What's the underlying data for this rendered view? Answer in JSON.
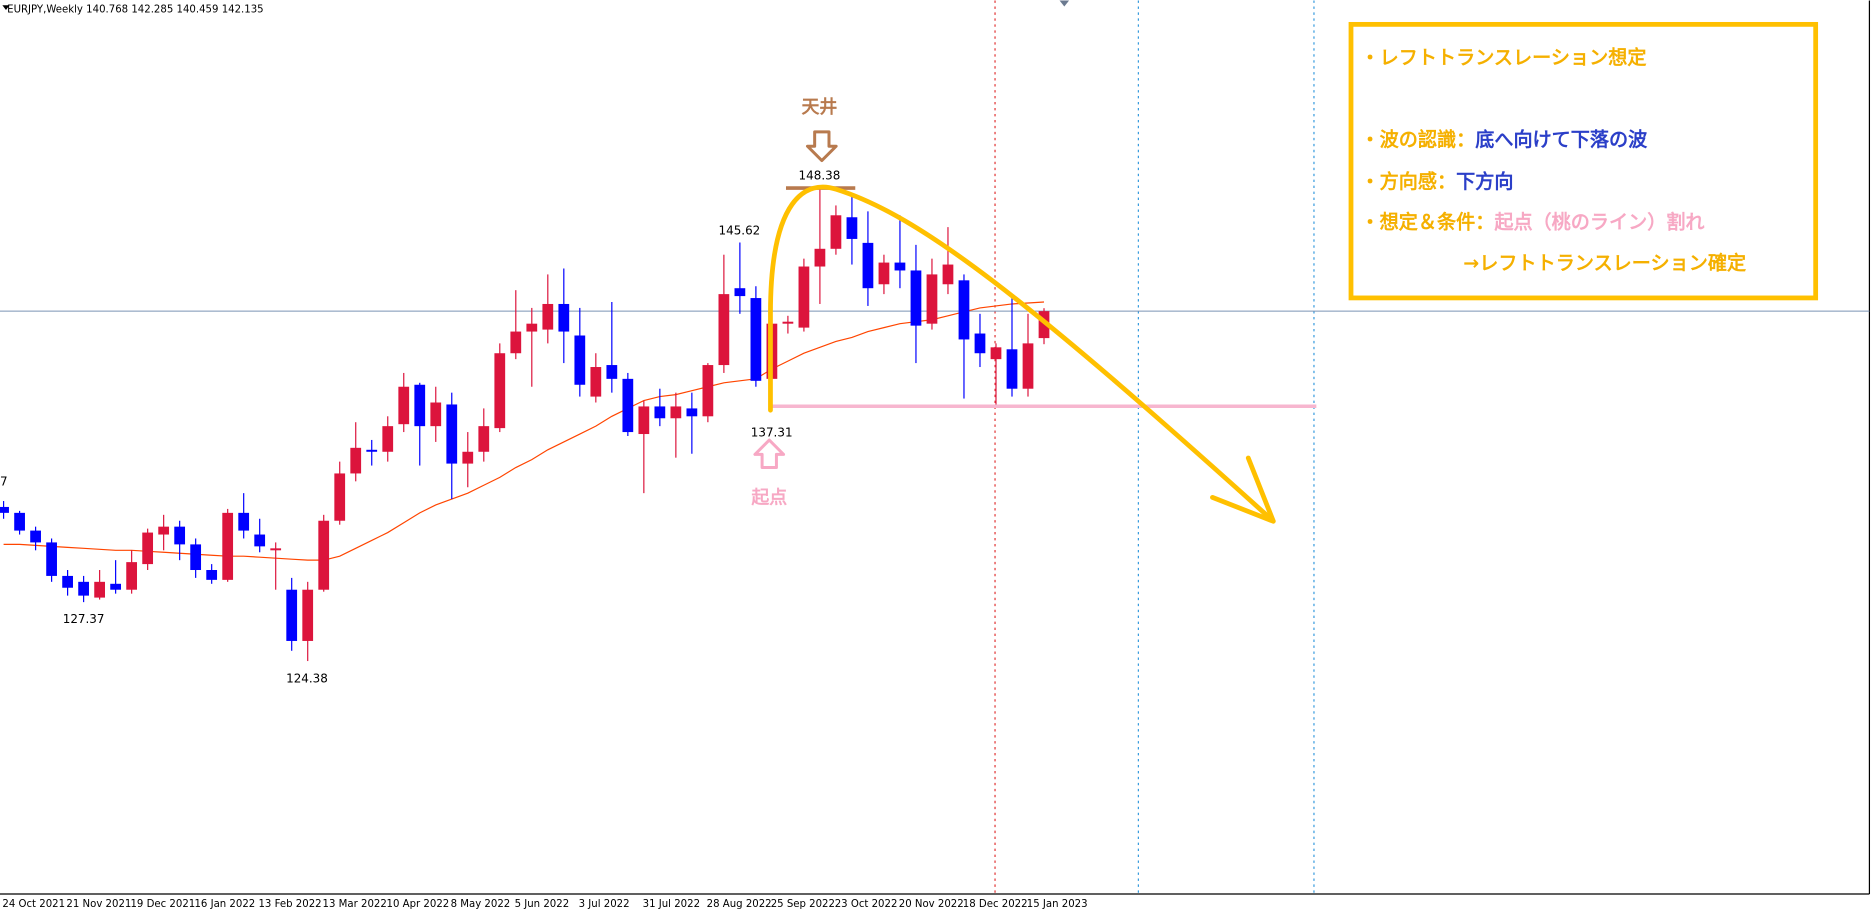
{
  "header": {
    "symbol": "EURJPY,Weekly",
    "open": 140.768,
    "high": 142.285,
    "low": 140.459,
    "close": 142.135
  },
  "chart_data": {
    "type": "candlestick",
    "categories": [
      "24 Oct 2021",
      null,
      null,
      null,
      "21 Nov 2021",
      null,
      null,
      null,
      "19 Dec 2021",
      null,
      null,
      null,
      "16 Jan 2022",
      null,
      null,
      null,
      "13 Feb 2022",
      null,
      null,
      null,
      "13 Mar 2022",
      null,
      null,
      null,
      "10 Apr 2022",
      null,
      null,
      null,
      "8 May 2022",
      null,
      null,
      null,
      "5 Jun 2022",
      null,
      null,
      null,
      "3 Jul 2022",
      null,
      null,
      null,
      "31 Jul 2022",
      null,
      null,
      null,
      "28 Aug 2022",
      null,
      null,
      null,
      "25 Sep 2022",
      null,
      null,
      null,
      "23 Oct 2022",
      null,
      null,
      null,
      "20 Nov 2022",
      null,
      null,
      null,
      "18 Dec 2022",
      null,
      null,
      null,
      "15 Jan 2023",
      null
    ],
    "open": [
      132.2,
      131.9,
      131.0,
      130.4,
      128.7,
      128.4,
      127.6,
      128.3,
      128.0,
      129.3,
      130.8,
      131.2,
      130.3,
      129.0,
      128.5,
      131.9,
      130.8,
      130.0,
      128.0,
      125.4,
      128.0,
      131.5,
      133.9,
      135.1,
      135.0,
      136.4,
      138.4,
      136.3,
      137.4,
      134.4,
      135.0,
      136.2,
      140.0,
      141.1,
      141.2,
      142.5,
      140.9,
      137.8,
      139.4,
      138.7,
      135.9,
      137.3,
      136.7,
      137.2,
      136.8,
      139.4,
      143.3,
      142.8,
      138.7,
      141.5,
      141.3,
      144.4,
      145.3,
      146.9,
      145.6,
      143.5,
      144.6,
      144.2,
      141.5,
      143.5,
      143.7,
      141.0,
      139.7,
      140.2,
      138.2,
      140.768
    ],
    "high": [
      132.5,
      132.0,
      131.2,
      130.6,
      129.0,
      128.7,
      129.0,
      129.5,
      130.0,
      131.1,
      131.8,
      131.5,
      130.6,
      129.3,
      132.1,
      132.9,
      131.6,
      130.4,
      128.6,
      128.4,
      131.8,
      134.5,
      136.5,
      135.6,
      136.8,
      139.0,
      138.5,
      138.3,
      138.0,
      136.0,
      137.2,
      140.5,
      143.2,
      142.3,
      144.0,
      144.3,
      142.3,
      140.0,
      142.6,
      139.0,
      137.6,
      138.2,
      138.0,
      138.0,
      139.5,
      145.0,
      145.62,
      143.4,
      142.0,
      141.9,
      144.8,
      148.38,
      147.5,
      148.0,
      147.2,
      145.0,
      147.0,
      145.5,
      144.8,
      146.4,
      144.0,
      142.0,
      140.5,
      142.8,
      142.0,
      142.285
    ],
    "low": [
      131.6,
      130.8,
      130.0,
      128.4,
      127.7,
      127.37,
      127.5,
      127.8,
      127.8,
      129.0,
      130.0,
      129.5,
      128.6,
      128.3,
      128.4,
      130.6,
      129.9,
      128.0,
      124.9,
      124.38,
      127.9,
      131.3,
      133.5,
      134.3,
      134.5,
      136.0,
      134.3,
      135.5,
      132.6,
      133.2,
      134.5,
      136.0,
      139.7,
      138.3,
      140.5,
      139.5,
      137.8,
      137.5,
      138.0,
      135.8,
      132.9,
      136.3,
      134.7,
      134.9,
      136.5,
      139.0,
      142.0,
      138.3,
      138.4,
      141.0,
      141.1,
      142.5,
      145.0,
      144.5,
      142.4,
      143.0,
      143.3,
      139.5,
      141.2,
      143.0,
      137.7,
      139.3,
      137.3,
      137.8,
      137.8,
      140.459
    ],
    "close": [
      131.9,
      131.0,
      130.4,
      128.7,
      128.1,
      127.7,
      128.4,
      128.0,
      129.4,
      130.9,
      131.2,
      130.3,
      129.0,
      128.5,
      131.9,
      131.0,
      130.2,
      130.1,
      125.4,
      128.0,
      131.5,
      133.9,
      135.2,
      135.0,
      136.3,
      138.3,
      136.3,
      137.5,
      134.4,
      135.0,
      136.3,
      140.0,
      141.1,
      141.5,
      142.5,
      141.1,
      138.4,
      139.3,
      138.7,
      136.0,
      137.3,
      136.7,
      137.3,
      136.8,
      139.4,
      143.0,
      142.9,
      138.6,
      141.5,
      141.6,
      144.4,
      145.3,
      147.0,
      145.8,
      143.3,
      144.6,
      144.2,
      141.4,
      144.0,
      144.5,
      140.7,
      140.0,
      140.3,
      138.2,
      140.5,
      142.135
    ],
    "up_color": "#dc143c",
    "down_color": "#0000ff",
    "ma": {
      "color": "#ff4500",
      "values": [
        130.3,
        130.3,
        130.25,
        130.2,
        130.15,
        130.1,
        130.05,
        130.0,
        130.0,
        129.95,
        129.9,
        129.85,
        129.8,
        129.75,
        129.7,
        129.7,
        129.65,
        129.6,
        129.55,
        129.5,
        129.5,
        129.7,
        130.1,
        130.5,
        130.9,
        131.4,
        131.9,
        132.3,
        132.6,
        132.9,
        133.3,
        133.7,
        134.2,
        134.6,
        135.1,
        135.5,
        135.9,
        136.3,
        136.8,
        137.2,
        137.6,
        137.8,
        137.9,
        138.1,
        138.3,
        138.5,
        138.6,
        138.7,
        139.2,
        139.6,
        140.0,
        140.3,
        140.6,
        140.8,
        141.1,
        141.3,
        141.5,
        141.6,
        141.7,
        141.9,
        142.1,
        142.3,
        142.4,
        142.5,
        142.55,
        142.6
      ]
    },
    "ylim": [
      112.56,
      157.9
    ],
    "price_labels": [
      148.38,
      145.62,
      137.31,
      127.37,
      124.38
    ],
    "edge_label": "7",
    "top_label": "天井",
    "start_label": "起点"
  },
  "note": [
    [
      "・レフトトランスレーション想定"
    ],
    [
      "・波の認識：",
      "底へ向けて下落の波"
    ],
    [
      "・方向感：",
      "下方向"
    ],
    [
      "・想定＆条件：",
      "起点（桃のライン）割れ"
    ],
    [
      "→レフトトランスレーション確定"
    ]
  ]
}
